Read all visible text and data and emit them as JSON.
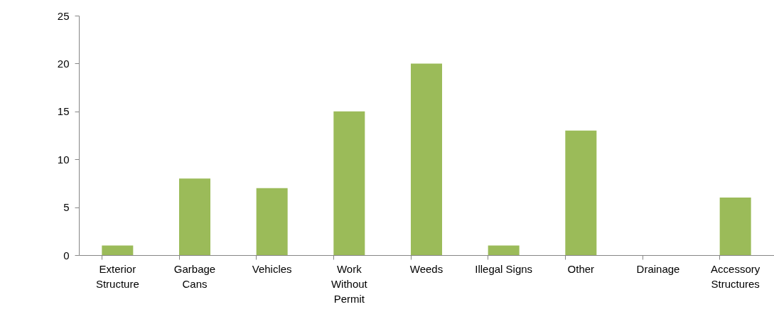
{
  "chart_data": {
    "type": "bar",
    "categories": [
      "Exterior Structure",
      "Garbage Cans",
      "Vehicles",
      "Work Without Permit",
      "Weeds",
      "Illegal Signs",
      "Other",
      "Drainage",
      "Accessory Structures"
    ],
    "values": [
      1,
      8,
      7,
      15,
      20,
      1,
      13,
      0,
      6
    ],
    "color": "#9bbb59",
    "ylim": [
      0,
      25
    ],
    "yticks": [
      0,
      5,
      10,
      15,
      20,
      25
    ],
    "grid": false
  }
}
